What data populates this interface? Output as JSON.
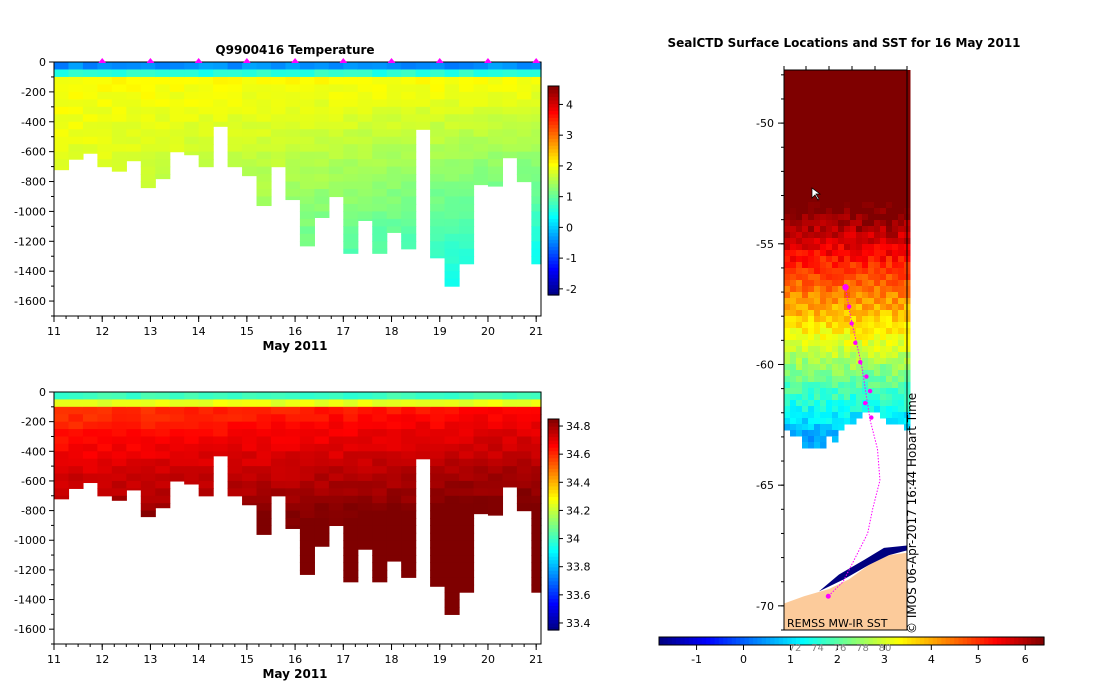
{
  "chart_data": [
    {
      "type": "heatmap",
      "title": "Q9900416  Temperature",
      "xlabel": "May 2011",
      "x_ticks": [
        "11",
        "12",
        "13",
        "14",
        "15",
        "16",
        "17",
        "18",
        "19",
        "20",
        "21"
      ],
      "xlim": [
        11,
        21.1
      ],
      "ylim": [
        -1700,
        0
      ],
      "y_ticks": [
        "0",
        "-200",
        "-400",
        "-600",
        "-800",
        "-1000",
        "-1200",
        "-1400",
        "-1600"
      ],
      "colorbar_ticks": [
        "4",
        "3",
        "2",
        "1",
        "0",
        "-1",
        "-2"
      ],
      "colorbar_range": [
        -2.2,
        4.6
      ],
      "colors": [
        "#00007f",
        "#0000ff",
        "#007fff",
        "#00ffff",
        "#7fff7f",
        "#ffff00",
        "#ff7f00",
        "#ff0000",
        "#7f0000"
      ],
      "surface_markers_x": [
        12,
        13,
        14,
        15,
        16,
        17,
        18,
        19,
        20,
        21
      ],
      "profiles": [
        {
          "x": 11.0,
          "depth": 720
        },
        {
          "x": 11.3,
          "depth": 650
        },
        {
          "x": 11.6,
          "depth": 610
        },
        {
          "x": 11.9,
          "depth": 700
        },
        {
          "x": 12.2,
          "depth": 730
        },
        {
          "x": 12.5,
          "depth": 660
        },
        {
          "x": 12.8,
          "depth": 840
        },
        {
          "x": 13.1,
          "depth": 780
        },
        {
          "x": 13.4,
          "depth": 600
        },
        {
          "x": 13.7,
          "depth": 620
        },
        {
          "x": 14.0,
          "depth": 700
        },
        {
          "x": 14.3,
          "depth": 430
        },
        {
          "x": 14.6,
          "depth": 700
        },
        {
          "x": 14.9,
          "depth": 760
        },
        {
          "x": 15.2,
          "depth": 960
        },
        {
          "x": 15.5,
          "depth": 700
        },
        {
          "x": 15.8,
          "depth": 920
        },
        {
          "x": 16.1,
          "depth": 1230
        },
        {
          "x": 16.4,
          "depth": 1040
        },
        {
          "x": 16.7,
          "depth": 900
        },
        {
          "x": 17.0,
          "depth": 1280
        },
        {
          "x": 17.3,
          "depth": 1060
        },
        {
          "x": 17.6,
          "depth": 1280
        },
        {
          "x": 17.9,
          "depth": 1140
        },
        {
          "x": 18.2,
          "depth": 1250
        },
        {
          "x": 18.5,
          "depth": 450
        },
        {
          "x": 18.8,
          "depth": 1310
        },
        {
          "x": 19.1,
          "depth": 1500
        },
        {
          "x": 19.4,
          "depth": 1350
        },
        {
          "x": 19.7,
          "depth": 820
        },
        {
          "x": 20.0,
          "depth": 830
        },
        {
          "x": 20.3,
          "depth": 640
        },
        {
          "x": 20.6,
          "depth": 800
        },
        {
          "x": 20.9,
          "depth": 1350
        }
      ]
    },
    {
      "type": "heatmap",
      "title": "",
      "xlabel": "May 2011",
      "x_ticks": [
        "11",
        "12",
        "13",
        "14",
        "15",
        "16",
        "17",
        "18",
        "19",
        "20",
        "21"
      ],
      "xlim": [
        11,
        21.1
      ],
      "ylim": [
        -1700,
        0
      ],
      "y_ticks": [
        "0",
        "-200",
        "-400",
        "-600",
        "-800",
        "-1000",
        "-1200",
        "-1400",
        "-1600"
      ],
      "colorbar_ticks": [
        "34.8",
        "34.6",
        "34.4",
        "34.2",
        "34",
        "33.8",
        "33.6",
        "33.4"
      ],
      "colorbar_range": [
        33.35,
        34.85
      ],
      "colors": [
        "#00007f",
        "#0000ff",
        "#007fff",
        "#00ffff",
        "#7fff7f",
        "#ffff00",
        "#ff7f00",
        "#ff0000",
        "#7f0000"
      ]
    },
    {
      "type": "heatmap",
      "title": "SealCTD Surface Locations and SST for 16 May 2011",
      "y_ticks": [
        "-50",
        "-55",
        "-60",
        "-65",
        "-70"
      ],
      "ylim": [
        -71,
        -47.8
      ],
      "colorbar_ticks": [
        "-1",
        "0",
        "1",
        "2",
        "3",
        "4",
        "5",
        "6"
      ],
      "colorbar_range": [
        -1.8,
        6.4
      ],
      "colors": [
        "#00007f",
        "#0000ff",
        "#007fff",
        "#00ffff",
        "#7fff7f",
        "#ffff00",
        "#ff7f00",
        "#ff0000",
        "#7f0000"
      ],
      "contour_labels": [
        "72",
        "74",
        "76",
        "78",
        "80"
      ],
      "track_latitudes": [
        -56.8,
        -57.6,
        -58.3,
        -59.1,
        -59.9,
        -60.5,
        -61.1,
        -61.6,
        -62.2
      ]
    }
  ],
  "watermark": "© IMOS 06-Apr-2017 16:44 Hobart Time",
  "source_label": "REMSS MW-IR SST"
}
